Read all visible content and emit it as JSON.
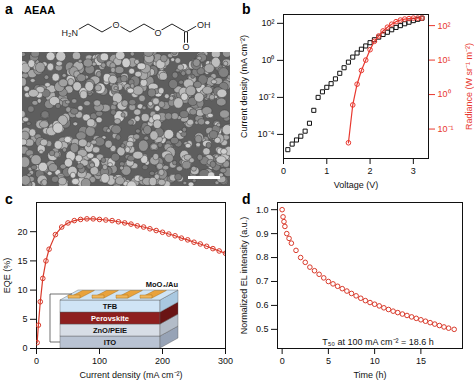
{
  "panel_a": {
    "label": "a",
    "title": "AEAA",
    "structure": {
      "amine": "H₂N",
      "ether": [
        "O",
        "O"
      ],
      "carbonyl": "O",
      "hydroxyl": "OH"
    }
  },
  "chart_data": [
    {
      "panel": "b",
      "type": "scatter",
      "x_label": "Voltage (V)",
      "y_label": "Current density (mA cm⁻²)",
      "y2_label": "Radiance (W sr⁻¹ m⁻²)",
      "log": "y",
      "xlim": [
        0,
        3.35
      ],
      "xticks": [
        0,
        1,
        2,
        3
      ],
      "ylim": [
        5e-06,
        300
      ],
      "yticks": [
        {
          "value": 0.0001,
          "label": "10⁻⁴"
        },
        {
          "value": 0.01,
          "label": "10⁻²"
        },
        {
          "value": 1,
          "label": "10⁰"
        },
        {
          "value": 100,
          "label": "10²"
        }
      ],
      "y2lim": [
        0.014,
        210
      ],
      "y2ticks": [
        {
          "value": 0.1,
          "label": "10⁻¹"
        },
        {
          "value": 1,
          "label": "10⁰"
        },
        {
          "value": 10,
          "label": "10¹"
        },
        {
          "value": 100,
          "label": "10²"
        }
      ],
      "x": [
        0.1,
        0.2,
        0.3,
        0.4,
        0.5,
        0.6,
        0.7,
        0.8,
        0.9,
        1.0,
        1.1,
        1.2,
        1.3,
        1.4,
        1.5,
        1.6,
        1.7,
        1.8,
        1.9,
        2.0,
        2.1,
        2.2,
        2.3,
        2.4,
        2.5,
        2.6,
        2.7,
        2.8,
        2.9,
        3.0,
        3.1,
        3.2
      ],
      "series": [
        {
          "type": "scatter",
          "marker": "square",
          "color": "#111111",
          "values": [
            1.5e-05,
            3e-05,
            5e-05,
            8e-05,
            0.00015,
            0.0004,
            0.002,
            0.01,
            0.02,
            0.035,
            0.055,
            0.1,
            0.2,
            0.4,
            0.8,
            1.5,
            2.5,
            4,
            6,
            9,
            13,
            18,
            25,
            33,
            45,
            60,
            75,
            95,
            115,
            140,
            165,
            190
          ]
        },
        {
          "type": "line",
          "marker": "circle",
          "color": "#e8382f",
          "axis": "y2",
          "values": [
            null,
            null,
            null,
            null,
            null,
            null,
            null,
            null,
            null,
            null,
            null,
            null,
            null,
            null,
            0.04,
            0.5,
            2,
            5,
            10,
            20,
            35,
            50,
            70,
            90,
            110,
            130,
            145,
            155,
            160,
            165,
            165,
            165
          ]
        }
      ]
    },
    {
      "panel": "c",
      "type": "line",
      "marker": "circle",
      "color": "#d93a2b",
      "x_label": "Current density (mA cm⁻²)",
      "y_label": "EQE (%)",
      "xlim": [
        0,
        300
      ],
      "xticks": [
        0,
        100,
        200,
        300
      ],
      "ylim": [
        0,
        25
      ],
      "yticks": [
        0,
        5,
        10,
        15,
        20
      ],
      "x": [
        1,
        3,
        6,
        10,
        15,
        20,
        30,
        40,
        50,
        60,
        70,
        80,
        90,
        100,
        110,
        120,
        130,
        140,
        150,
        160,
        170,
        180,
        190,
        200,
        210,
        220,
        230,
        240,
        250,
        260,
        270,
        280,
        290,
        300
      ],
      "values": [
        1,
        4,
        8,
        12,
        15,
        17,
        19.5,
        20.8,
        21.5,
        21.9,
        22.1,
        22.2,
        22.2,
        22.1,
        22.0,
        21.9,
        21.7,
        21.5,
        21.3,
        21.0,
        20.8,
        20.5,
        20.2,
        19.9,
        19.6,
        19.3,
        18.9,
        18.6,
        18.2,
        17.9,
        17.5,
        17.1,
        16.7,
        16.3
      ],
      "inset": {
        "layers": [
          "ITO",
          "ZnO/PEIE",
          "Perovskite",
          "TFB",
          "MoO₃/Au"
        ]
      }
    },
    {
      "panel": "d",
      "type": "scatter",
      "marker": "circle",
      "color": "#d93a2b",
      "x_label": "Time (h)",
      "y_label": "Normalized EL intensity (a.u.)",
      "annotations": [
        "T₅₀ at 100 mA cm⁻² = 18.6 h"
      ],
      "xlim": [
        -0.5,
        19.5
      ],
      "xticks": [
        0,
        5,
        10,
        15
      ],
      "ylim": [
        0.42,
        1.03
      ],
      "yticks": [
        0.5,
        0.6,
        0.7,
        0.8,
        0.9,
        {
          "value": 1,
          "label": "1.0"
        }
      ],
      "x": [
        0,
        0.1,
        0.2,
        0.3,
        0.5,
        0.75,
        1,
        1.5,
        2,
        2.5,
        3,
        3.5,
        4,
        4.5,
        5,
        5.5,
        6,
        6.5,
        7,
        7.5,
        8,
        8.5,
        9,
        9.5,
        10,
        10.5,
        11,
        11.5,
        12,
        12.5,
        13,
        13.5,
        14,
        14.5,
        15,
        15.5,
        16,
        16.5,
        17,
        17.5,
        18,
        18.6
      ],
      "values": [
        1.0,
        0.97,
        0.95,
        0.93,
        0.9,
        0.88,
        0.86,
        0.83,
        0.8,
        0.78,
        0.76,
        0.745,
        0.73,
        0.715,
        0.7,
        0.69,
        0.68,
        0.67,
        0.66,
        0.65,
        0.64,
        0.63,
        0.62,
        0.612,
        0.605,
        0.598,
        0.59,
        0.583,
        0.576,
        0.57,
        0.564,
        0.558,
        0.552,
        0.546,
        0.54,
        0.534,
        0.528,
        0.522,
        0.516,
        0.51,
        0.505,
        0.5
      ]
    }
  ]
}
